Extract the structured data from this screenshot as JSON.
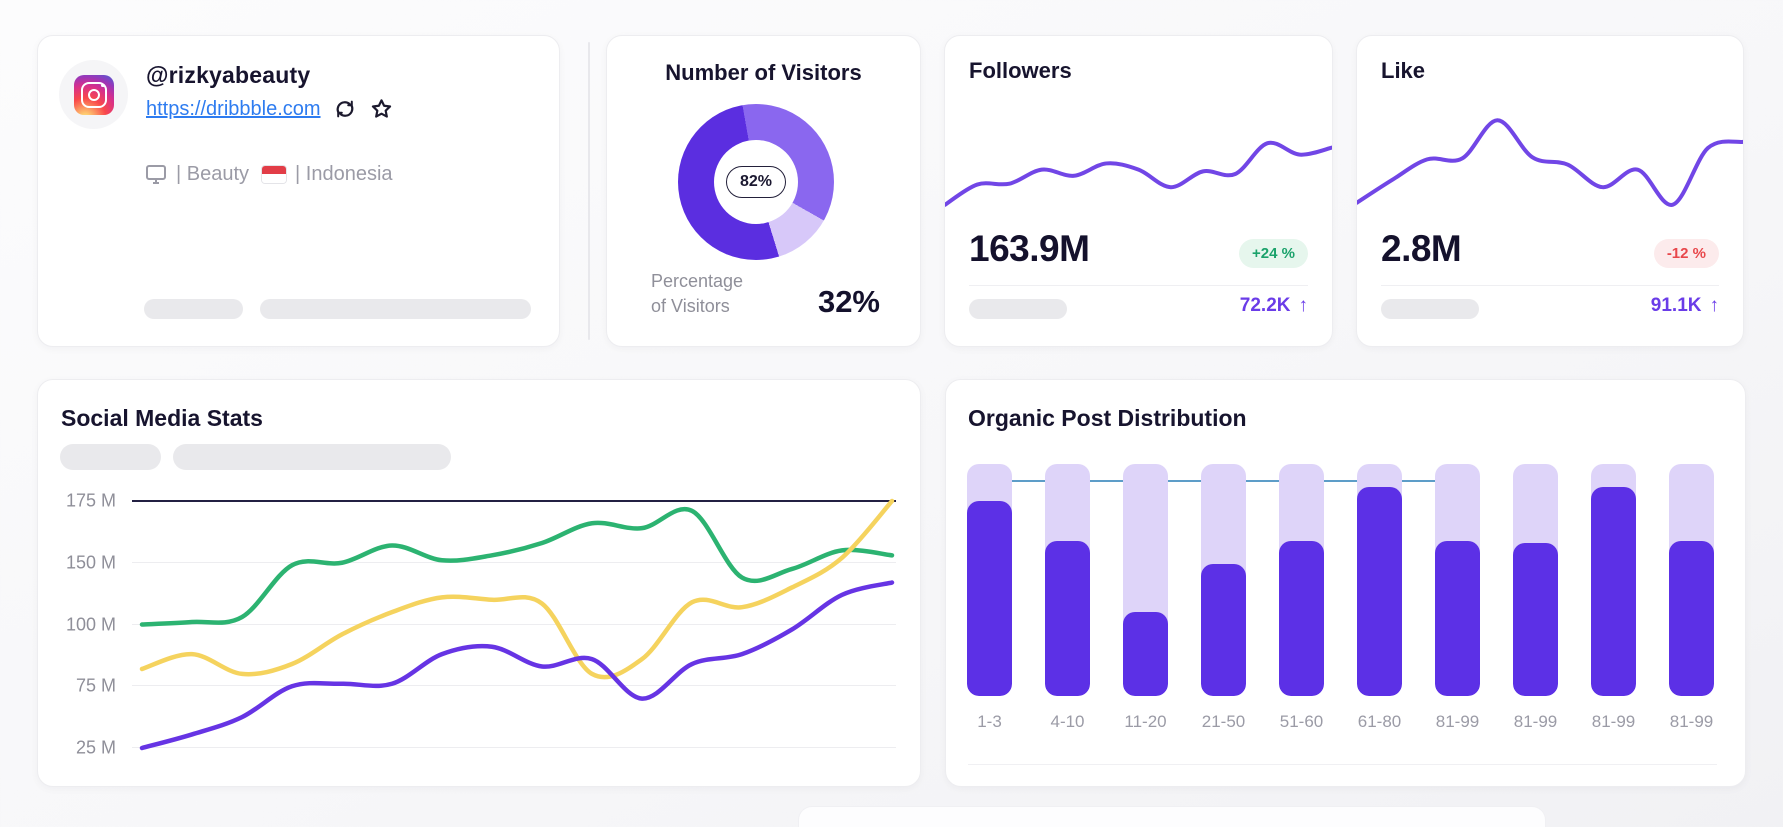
{
  "profile": {
    "handle": "@rizkyabeauty",
    "link": "https://dribbble.com",
    "category_label": "| Beauty",
    "country_label": "| Indonesia"
  },
  "visitors": {
    "title": "Number of Visitors",
    "center_badge": "82%",
    "caption_line1": "Percentage",
    "caption_line2": "of Visitors",
    "value": "32%"
  },
  "followers": {
    "title": "Followers",
    "value": "163.9M",
    "badge": {
      "text": "+24 %",
      "fg": "#1ba26b",
      "bg": "#e6f6ed"
    },
    "footer": {
      "value": "72.2K",
      "arrow": "↑"
    }
  },
  "like": {
    "title": "Like",
    "value": "2.8M",
    "badge": {
      "text": "-12 %",
      "fg": "#e8474b",
      "bg": "#fcebec"
    },
    "footer": {
      "value": "91.1K",
      "arrow": "↑"
    }
  },
  "social": {
    "title": "Social Media Stats"
  },
  "organic": {
    "title": "Organic Post Distribution"
  },
  "colors": {
    "accent_purple": "#5c30e6",
    "light_purple_track": "#ded4f9",
    "spark_purple": "#7146e6",
    "threshold_blue": "#5d9dc8",
    "link_blue": "#2e7cf0",
    "dark_gridline": "#232043"
  },
  "chart_data": [
    {
      "id": "visitors-donut",
      "type": "pie",
      "title": "Number of Visitors",
      "center_label": "82%",
      "start_deg": -10,
      "slices": [
        {
          "name": "segment-medium",
          "pct": 36,
          "color": "#8a67ef"
        },
        {
          "name": "segment-light",
          "pct": 12,
          "color": "#d7c8f9"
        },
        {
          "name": "segment-dark",
          "pct": 52,
          "color": "#5b2ee0"
        }
      ]
    },
    {
      "id": "followers-spark",
      "type": "line",
      "title": "Followers",
      "color": "#7146e6",
      "values": [
        15,
        38,
        39,
        55,
        48,
        62,
        55,
        35,
        53,
        50,
        85,
        72,
        80
      ]
    },
    {
      "id": "like-spark",
      "type": "line",
      "title": "Like",
      "color": "#7146e6",
      "values": [
        12,
        34,
        54,
        55,
        92,
        56,
        49,
        27,
        44,
        10,
        65,
        71
      ]
    },
    {
      "id": "social-lines",
      "type": "line",
      "title": "Social Media Stats",
      "ylabels": [
        "175 M",
        "150 M",
        "100 M",
        "75 M",
        "25 M"
      ],
      "ytick_values": [
        175,
        150,
        100,
        75,
        25
      ],
      "grid": true,
      "legend_position": "none",
      "series": [
        {
          "name": "green",
          "color": "#2cb371",
          "values": [
            100,
            102,
            106,
            148,
            150,
            157,
            151,
            153,
            158,
            166,
            164,
            171,
            138,
            145,
            155,
            153
          ]
        },
        {
          "name": "yellow",
          "color": "#f5d35e",
          "values": [
            82,
            88,
            80,
            84,
            96,
            110,
            122,
            120,
            117,
            80,
            86,
            118,
            114,
            130,
            152,
            175
          ]
        },
        {
          "name": "purple",
          "color": "#6634e4",
          "values": [
            25,
            36,
            50,
            75,
            76,
            76,
            88,
            91,
            83,
            86,
            65,
            84,
            88,
            98,
            124,
            134
          ]
        }
      ]
    },
    {
      "id": "organic-bars",
      "type": "bar",
      "title": "Organic Post Distribution",
      "categories": [
        "1-3",
        "4-10",
        "11-20",
        "21-50",
        "51-60",
        "61-80",
        "81-99",
        "81-99",
        "81-99",
        "81-99"
      ],
      "values_pct": [
        84,
        67,
        36,
        57,
        67,
        90,
        67,
        66,
        90,
        67
      ],
      "ylim": [
        0,
        100
      ],
      "threshold": {
        "pct": 93,
        "from_bar": 0,
        "to_bar": 6,
        "color": "#5d9dc8"
      },
      "bar_color": "#5c30e6",
      "track_color": "#ded4f9"
    }
  ]
}
